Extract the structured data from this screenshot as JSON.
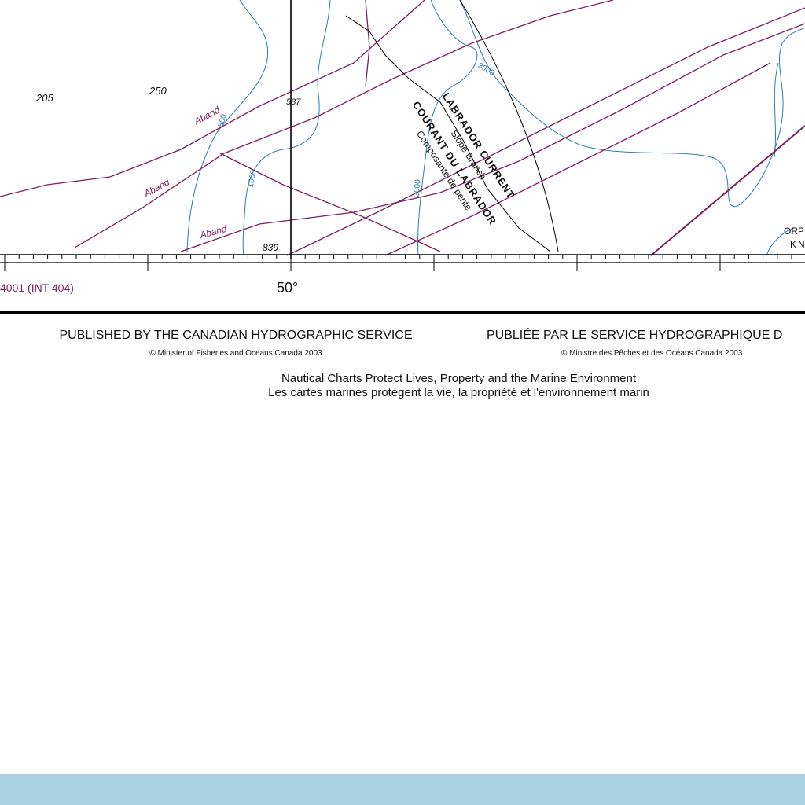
{
  "chart": {
    "soundings": [
      "205",
      "250",
      "587",
      "839"
    ],
    "contour_labels": [
      "500",
      "1000",
      "2000",
      "3000"
    ],
    "cable_label": "Aband",
    "current_en": "LABRADOR CURRENT",
    "current_en_sub": "Slope Branch",
    "current_fr": "COURANT DU LABRADOR",
    "current_fr_sub": "Composante de pente",
    "feature_partial_1": "ORP",
    "feature_partial_2": "KN",
    "chart_number": "4001 (INT 404)",
    "longitude": "50°",
    "colors": {
      "contour": "#2b7bb5",
      "cable": "#7d1f5e",
      "border": "#000000",
      "strip": "#a9d0e0"
    }
  },
  "footer": {
    "published_en": "PUBLISHED BY THE CANADIAN HYDROGRAPHIC SERVICE",
    "published_fr": "PUBLIÉE PAR LE SERVICE HYDROGRAPHIQUE D",
    "copyright_en": "© Minister of Fisheries and Oceans Canada 2003",
    "copyright_fr": "© Ministre des Pêches et des Océans Canada 2003",
    "motto_en": "Nautical Charts Protect Lives, Property and the Marine Environment",
    "motto_fr": "Les cartes marines protègent la vie, la propriété et l'environnement marin"
  }
}
